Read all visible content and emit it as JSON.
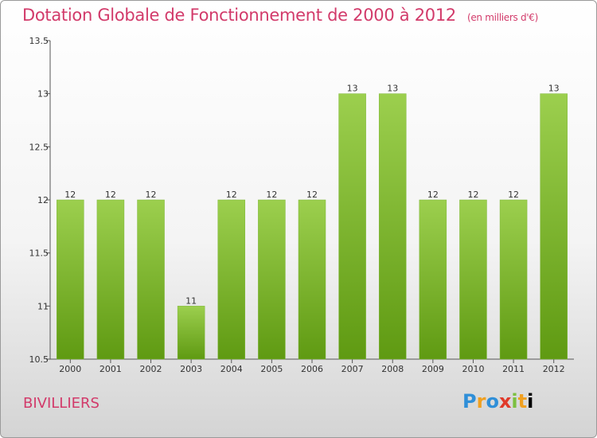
{
  "header": {
    "title": "Dotation Globale de Fonctionnement de 2000 à 2012",
    "subtitle": "(en milliers d'€)"
  },
  "footer": {
    "commune": "BIVILLIERS",
    "logo_letters": [
      "P",
      "r",
      "o",
      "x",
      "i",
      "t",
      "i"
    ]
  },
  "colors": {
    "bar_top": "#9ccf4e",
    "bar_bottom": "#5f9a12",
    "title": "#d23a6a"
  },
  "chart_data": {
    "type": "bar",
    "title": "Dotation Globale de Fonctionnement de 2000 à 2012",
    "subtitle": "(en milliers d'€)",
    "xlabel": "",
    "ylabel": "",
    "categories": [
      "2000",
      "2001",
      "2002",
      "2003",
      "2004",
      "2005",
      "2006",
      "2007",
      "2008",
      "2009",
      "2010",
      "2011",
      "2012"
    ],
    "values": [
      12,
      12,
      12,
      11,
      12,
      12,
      12,
      13,
      13,
      12,
      12,
      12,
      13
    ],
    "value_labels": [
      "12",
      "12",
      "12",
      "11",
      "12",
      "12",
      "12",
      "13",
      "13",
      "12",
      "12",
      "12",
      "13"
    ],
    "ylim": [
      10.5,
      13.5
    ],
    "yticks": [
      10.5,
      11,
      11.5,
      12,
      12.5,
      13,
      13.5
    ],
    "ytick_labels": [
      "10.5",
      "11",
      "11.5",
      "12",
      "12.5",
      "13",
      "13.5"
    ],
    "grid": false,
    "legend": "none"
  }
}
